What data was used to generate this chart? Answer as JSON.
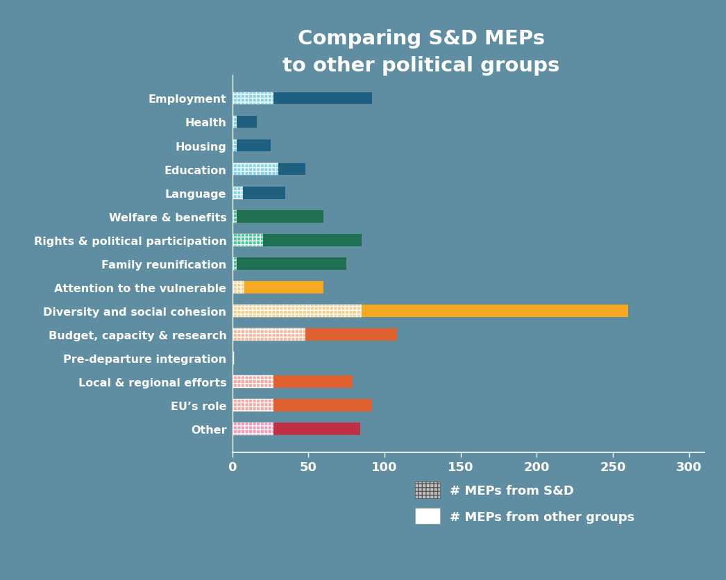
{
  "title": "Comparing S&D MEPs\nto other political groups",
  "categories": [
    "Employment",
    "Health",
    "Housing",
    "Education",
    "Language",
    "Welfare & benefits",
    "Rights & political participation",
    "Family reunification",
    "Attention to the vulnerable",
    "Diversity and social cohesion",
    "Budget, capacity & research",
    "Pre-departure integration",
    "Local & regional efforts",
    "EU’s role",
    "Other"
  ],
  "sd_values": [
    27,
    3,
    3,
    30,
    7,
    3,
    20,
    3,
    8,
    85,
    48,
    1,
    27,
    27,
    27
  ],
  "other_values": [
    65,
    13,
    22,
    18,
    28,
    57,
    65,
    72,
    52,
    175,
    60,
    0,
    52,
    65,
    57
  ],
  "background_color": "#5f8ea3",
  "xlim_max": 310,
  "xticks": [
    0,
    50,
    100,
    150,
    200,
    250,
    300
  ],
  "legend_sd_label": "# MEPs from S&D",
  "legend_other_label": "# MEPs from other groups",
  "sd_colors": [
    "#7dd4ed",
    "#7dd4ed",
    "#7dd4ed",
    "#7dd4ed",
    "#7dd4ed",
    "#4ec49c",
    "#4ec49c",
    "#4ec49c",
    "#f7d090",
    "#f7d090",
    "#f7b898",
    "#f7a8a0",
    "#f7a8a0",
    "#f7a8a0",
    "#f799b8"
  ],
  "other_colors": [
    "#1f6080",
    "#1f6080",
    "#1f6080",
    "#1f6080",
    "#1f6080",
    "#1e7050",
    "#1e7050",
    "#1e7050",
    "#f5a820",
    "#f5a820",
    "#e06030",
    "#e06030",
    "#e06030",
    "#e06030",
    "#c03045"
  ]
}
